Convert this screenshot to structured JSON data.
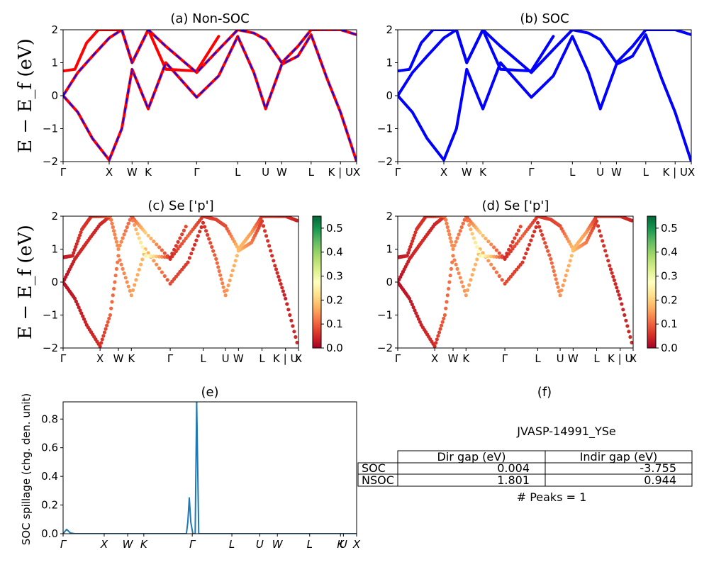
{
  "figure_title": "JVASP-14991_YSe",
  "peaks_text": "# Peaks = 1",
  "band_ylabel": "E − E_f (eV)",
  "colors": {
    "soc": "#0000ff",
    "nonsoc": "#ff0000",
    "spillage_line": "#1f77b4"
  },
  "chart_data": [
    {
      "id": "a",
      "type": "line",
      "title": "(a) Non-SOC",
      "ylabel": "E − E_f (eV)",
      "ylim": [
        -2,
        2
      ],
      "xlim": [
        0,
        1
      ],
      "y_ticks": [
        "−2",
        "−1",
        "0",
        "1",
        "2"
      ],
      "kpath_labels": [
        "Γ",
        "X",
        "W",
        "K",
        "Γ",
        "L",
        "U",
        "W",
        "L",
        "K | U",
        "X"
      ],
      "kpath_positions": [
        0,
        0.157,
        0.235,
        0.29,
        0.455,
        0.595,
        0.69,
        0.745,
        0.845,
        0.945,
        1.0
      ],
      "series": [
        {
          "name": "Non-SOC",
          "style": "red solid",
          "x": [
            0,
            0.05,
            0.1,
            0.157,
            0.2,
            0.235,
            0.29,
            0.35,
            0.455,
            0.53,
            0.595,
            0.65,
            0.69,
            0.745,
            0.8,
            0.845,
            0.9,
            0.945,
            1.0
          ],
          "y": [
            0,
            -0.5,
            -1.3,
            -1.95,
            -1.0,
            0.8,
            -0.4,
            1.0,
            -0.05,
            0.6,
            1.8,
            0.7,
            -0.4,
            0.95,
            1.2,
            1.85,
            0.5,
            -0.5,
            -2.0
          ]
        },
        {
          "name": "Non-SOC",
          "style": "red solid",
          "x": [
            0,
            0.05,
            0.1,
            0.157,
            0.2,
            0.235,
            0.29,
            0.35,
            0.455,
            0.53,
            0.595,
            0.65,
            0.69,
            0.745,
            0.8,
            0.845,
            0.9,
            0.945,
            1.0
          ],
          "y": [
            0,
            0.7,
            1.2,
            1.75,
            2.0,
            1.0,
            2.0,
            1.5,
            0.7,
            1.4,
            2.0,
            1.9,
            1.7,
            1.0,
            1.5,
            2.0,
            2.0,
            2.0,
            1.85
          ]
        },
        {
          "name": "Non-SOC",
          "style": "red solid",
          "x": [
            0,
            0.04,
            0.08,
            0.12,
            0.16,
            0.2,
            0.235,
            0.29,
            0.35,
            0.455,
            0.53
          ],
          "y": [
            0.75,
            0.8,
            1.6,
            2.0,
            2.0,
            2.0,
            1.0,
            2.0,
            0.8,
            0.75,
            1.8
          ]
        },
        {
          "name": "SOC",
          "style": "blue dashed",
          "x": [
            0,
            0.05,
            0.1,
            0.157,
            0.2,
            0.235,
            0.29,
            0.35,
            0.455,
            0.53,
            0.595,
            0.65,
            0.69,
            0.745,
            0.8,
            0.845,
            0.9,
            0.945,
            1.0
          ],
          "y": [
            0,
            -0.5,
            -1.3,
            -1.95,
            -1.0,
            0.8,
            -0.4,
            1.0,
            -0.05,
            0.6,
            1.8,
            0.7,
            -0.4,
            0.95,
            1.2,
            1.85,
            0.5,
            -0.5,
            -2.0
          ]
        },
        {
          "name": "SOC",
          "style": "blue dashed",
          "x": [
            0,
            0.05,
            0.1,
            0.157,
            0.2,
            0.235,
            0.29,
            0.35,
            0.455,
            0.53,
            0.595,
            0.65,
            0.69,
            0.745,
            0.8,
            0.845,
            0.9,
            0.945,
            1.0
          ],
          "y": [
            0,
            0.7,
            1.2,
            1.75,
            2.0,
            1.0,
            2.0,
            1.5,
            0.7,
            1.4,
            2.0,
            1.9,
            1.7,
            1.0,
            1.5,
            2.0,
            2.0,
            2.0,
            1.85
          ]
        }
      ]
    },
    {
      "id": "b",
      "type": "line",
      "title": "(b) SOC",
      "ylim": [
        -2,
        2
      ],
      "xlim": [
        0,
        1
      ],
      "y_ticks": [
        "−2",
        "−1",
        "0",
        "1",
        "2"
      ],
      "kpath_labels": [
        "Γ",
        "X",
        "W",
        "K",
        "Γ",
        "L",
        "U",
        "W",
        "L",
        "K | U",
        "X"
      ],
      "kpath_positions": [
        0,
        0.157,
        0.235,
        0.29,
        0.455,
        0.595,
        0.69,
        0.745,
        0.845,
        0.945,
        1.0
      ],
      "series": [
        {
          "name": "SOC",
          "x": [
            0,
            0.05,
            0.1,
            0.157,
            0.2,
            0.235,
            0.29,
            0.35,
            0.455,
            0.53,
            0.595,
            0.65,
            0.69,
            0.745,
            0.8,
            0.845,
            0.9,
            0.945,
            1.0
          ],
          "y": [
            0,
            -0.5,
            -1.3,
            -1.95,
            -1.0,
            0.8,
            -0.4,
            1.0,
            -0.05,
            0.6,
            1.8,
            0.7,
            -0.4,
            0.95,
            1.2,
            1.85,
            0.5,
            -0.5,
            -2.0
          ]
        },
        {
          "name": "SOC",
          "x": [
            0,
            0.05,
            0.1,
            0.157,
            0.2,
            0.235,
            0.29,
            0.35,
            0.455,
            0.53,
            0.595,
            0.65,
            0.69,
            0.745,
            0.8,
            0.845,
            0.9,
            0.945,
            1.0
          ],
          "y": [
            0,
            0.7,
            1.2,
            1.75,
            2.0,
            1.0,
            2.0,
            1.5,
            0.7,
            1.4,
            2.0,
            1.9,
            1.7,
            1.0,
            1.5,
            2.0,
            2.0,
            2.0,
            1.85
          ]
        },
        {
          "name": "SOC",
          "x": [
            0,
            0.04,
            0.08,
            0.12,
            0.16,
            0.2,
            0.235,
            0.29,
            0.35,
            0.455,
            0.53
          ],
          "y": [
            0.75,
            0.8,
            1.6,
            2.0,
            2.0,
            2.0,
            1.0,
            2.0,
            0.8,
            0.75,
            1.8
          ]
        }
      ]
    },
    {
      "id": "c",
      "type": "scatter",
      "title": "(c)  Se ['p']",
      "ylabel": "E − E_f (eV)",
      "ylim": [
        -2,
        2
      ],
      "xlim": [
        0,
        1
      ],
      "y_ticks": [
        "−2",
        "−1",
        "0",
        "1",
        "2"
      ],
      "kpath_labels": [
        "Γ",
        "X",
        "W",
        "K",
        "Γ",
        "L",
        "U",
        "W",
        "L",
        "K | U",
        "X"
      ],
      "kpath_positions": [
        0,
        0.157,
        0.235,
        0.29,
        0.455,
        0.595,
        0.69,
        0.745,
        0.845,
        0.945,
        1.0
      ],
      "colorbar": {
        "range": [
          0.0,
          0.55
        ],
        "ticks": [
          "0.0",
          "0.1",
          "0.2",
          "0.3",
          "0.4",
          "0.5"
        ]
      },
      "series": [
        {
          "name": "Se p",
          "x": [
            0,
            0.05,
            0.1,
            0.157,
            0.2,
            0.235,
            0.29,
            0.35,
            0.455,
            0.53,
            0.595,
            0.65,
            0.69,
            0.745,
            0.8,
            0.845,
            0.9,
            0.945,
            1.0
          ],
          "y": [
            0,
            -0.5,
            -1.3,
            -1.95,
            -1.0,
            0.8,
            -0.4,
            1.0,
            -0.05,
            0.6,
            1.8,
            0.7,
            -0.4,
            0.95,
            1.2,
            1.85,
            0.5,
            -0.5,
            -2.0
          ],
          "weights": [
            0.02,
            0.03,
            0.04,
            0.05,
            0.1,
            0.12,
            0.15,
            0.18,
            0.08,
            0.06,
            0.05,
            0.1,
            0.14,
            0.18,
            0.12,
            0.06,
            0.05,
            0.04,
            0.05
          ]
        },
        {
          "name": "Se p",
          "x": [
            0,
            0.05,
            0.1,
            0.157,
            0.2,
            0.235,
            0.29,
            0.35,
            0.455,
            0.53,
            0.595,
            0.65,
            0.69,
            0.745,
            0.8,
            0.845,
            0.9,
            0.945,
            1.0
          ],
          "y": [
            0,
            0.7,
            1.2,
            1.75,
            2.0,
            1.0,
            2.0,
            1.5,
            0.7,
            1.4,
            2.0,
            1.9,
            1.7,
            1.0,
            1.5,
            2.0,
            2.0,
            2.0,
            1.85
          ],
          "weights": [
            0.02,
            0.04,
            0.05,
            0.04,
            0.06,
            0.16,
            0.08,
            0.2,
            0.05,
            0.1,
            0.06,
            0.07,
            0.08,
            0.18,
            0.15,
            0.06,
            0.06,
            0.05,
            0.04
          ]
        },
        {
          "name": "Se p",
          "x": [
            0,
            0.04,
            0.08,
            0.12,
            0.16,
            0.2,
            0.235,
            0.29,
            0.35,
            0.455,
            0.53
          ],
          "y": [
            0.75,
            0.8,
            1.6,
            2.0,
            2.0,
            2.0,
            1.0,
            2.0,
            0.8,
            0.75,
            1.8
          ],
          "weights": [
            0.03,
            0.04,
            0.06,
            0.05,
            0.06,
            0.12,
            0.14,
            0.1,
            0.3,
            0.05,
            0.08
          ]
        }
      ]
    },
    {
      "id": "d",
      "type": "scatter",
      "title": "(d) Se ['p']",
      "ylim": [
        -2,
        2
      ],
      "xlim": [
        0,
        1
      ],
      "y_ticks": [
        "−2",
        "−1",
        "0",
        "1",
        "2"
      ],
      "kpath_labels": [
        "Γ",
        "X",
        "W",
        "K",
        "Γ",
        "L",
        "U",
        "W",
        "L",
        "K | U",
        "X"
      ],
      "kpath_positions": [
        0,
        0.157,
        0.235,
        0.29,
        0.455,
        0.595,
        0.69,
        0.745,
        0.845,
        0.945,
        1.0
      ],
      "colorbar": {
        "range": [
          0.0,
          0.55
        ],
        "ticks": [
          "0.0",
          "0.1",
          "0.2",
          "0.3",
          "0.4",
          "0.5"
        ]
      },
      "series": [
        {
          "name": "Se p",
          "x": [
            0,
            0.05,
            0.1,
            0.157,
            0.2,
            0.235,
            0.29,
            0.35,
            0.455,
            0.53,
            0.595,
            0.65,
            0.69,
            0.745,
            0.8,
            0.845,
            0.9,
            0.945,
            1.0
          ],
          "y": [
            0,
            -0.5,
            -1.3,
            -1.95,
            -1.0,
            0.8,
            -0.4,
            1.0,
            -0.05,
            0.6,
            1.8,
            0.7,
            -0.4,
            0.95,
            1.2,
            1.85,
            0.5,
            -0.5,
            -2.0
          ],
          "weights": [
            0.02,
            0.03,
            0.04,
            0.05,
            0.1,
            0.12,
            0.15,
            0.18,
            0.08,
            0.06,
            0.05,
            0.1,
            0.14,
            0.18,
            0.12,
            0.06,
            0.05,
            0.04,
            0.05
          ]
        },
        {
          "name": "Se p",
          "x": [
            0,
            0.05,
            0.1,
            0.157,
            0.2,
            0.235,
            0.29,
            0.35,
            0.455,
            0.53,
            0.595,
            0.65,
            0.69,
            0.745,
            0.8,
            0.845,
            0.9,
            0.945,
            1.0
          ],
          "y": [
            0,
            0.7,
            1.2,
            1.75,
            2.0,
            1.0,
            2.0,
            1.5,
            0.7,
            1.4,
            2.0,
            1.9,
            1.7,
            1.0,
            1.5,
            2.0,
            2.0,
            2.0,
            1.85
          ],
          "weights": [
            0.02,
            0.04,
            0.05,
            0.04,
            0.06,
            0.16,
            0.08,
            0.2,
            0.05,
            0.1,
            0.06,
            0.07,
            0.08,
            0.18,
            0.15,
            0.06,
            0.06,
            0.05,
            0.04
          ]
        },
        {
          "name": "Se p",
          "x": [
            0,
            0.04,
            0.08,
            0.12,
            0.16,
            0.2,
            0.235,
            0.29,
            0.35,
            0.455,
            0.53
          ],
          "y": [
            0.75,
            0.8,
            1.6,
            2.0,
            2.0,
            2.0,
            1.0,
            2.0,
            0.8,
            0.75,
            1.8
          ],
          "weights": [
            0.03,
            0.04,
            0.06,
            0.05,
            0.06,
            0.12,
            0.14,
            0.1,
            0.3,
            0.05,
            0.08
          ]
        }
      ]
    },
    {
      "id": "e",
      "type": "line",
      "title": "(e)",
      "ylabel": "SOC spillage (chg. den. unit)",
      "ylim": [
        0,
        0.92
      ],
      "xlim": [
        0,
        1
      ],
      "y_ticks": [
        "0.0",
        "0.2",
        "0.4",
        "0.6",
        "0.8"
      ],
      "y_tick_values": [
        0,
        0.2,
        0.4,
        0.6,
        0.8
      ],
      "kpath_labels": [
        "Γ",
        "X",
        "W",
        "K",
        "Γ",
        "L",
        "U",
        "W",
        "L",
        "K",
        "U",
        "X"
      ],
      "kpath_positions": [
        0,
        0.14,
        0.22,
        0.275,
        0.44,
        0.575,
        0.67,
        0.73,
        0.84,
        0.945,
        0.955,
        1.0
      ],
      "series": [
        {
          "name": "spillage",
          "x": [
            0,
            0.012,
            0.025,
            0.04,
            0.42,
            0.425,
            0.43,
            0.435,
            0.442,
            0.45,
            0.455,
            0.462,
            0.47,
            1.0
          ],
          "y": [
            0.0,
            0.03,
            0.005,
            0.0,
            0.0,
            0.08,
            0.25,
            0.08,
            0.0,
            0.0,
            0.92,
            0.0,
            0.0,
            0.0
          ]
        }
      ]
    },
    {
      "id": "f",
      "type": "table",
      "title": "(f)",
      "header": [
        "",
        "Dir gap (eV)",
        "Indir gap (eV)"
      ],
      "rows": [
        [
          "SOC",
          "0.004",
          "-3.755"
        ],
        [
          "NSOC",
          "1.801",
          "0.944"
        ]
      ]
    }
  ]
}
